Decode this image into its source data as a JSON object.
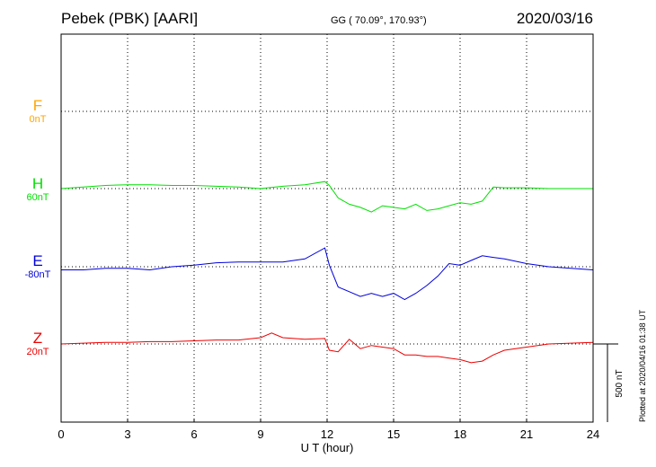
{
  "header": {
    "station": "Pebek (PBK)  [AARI]",
    "coords": "GG ( 70.09°, 170.93°)",
    "date": "2020/03/16"
  },
  "footer_note": "Plotted at 2020/04/16 01:38 UT",
  "chart_data": {
    "type": "line",
    "title": "Pebek (PBK)  [AARI]",
    "xlabel": "U T (hour)",
    "xlim": [
      0,
      24
    ],
    "xticks": [
      "0",
      "3",
      "6",
      "9",
      "12",
      "15",
      "18",
      "21",
      "24"
    ],
    "grid": true,
    "scale_bar": {
      "label": "500 nT",
      "value_nT": 500
    },
    "series": [
      {
        "name": "F",
        "baseline": "0nT",
        "color": "#ffa500",
        "x": [],
        "y": []
      },
      {
        "name": "H",
        "baseline": "60nT",
        "color": "#00e000",
        "x": [
          0,
          1,
          2,
          3,
          4,
          5,
          6,
          7,
          8,
          9,
          10,
          11,
          11.9,
          12.1,
          12.5,
          13,
          13.5,
          14,
          14.5,
          15,
          15.5,
          16,
          16.5,
          17,
          17.5,
          18,
          18.5,
          19,
          19.5,
          20,
          21,
          22,
          23,
          24
        ],
        "y": [
          0,
          10,
          20,
          25,
          25,
          20,
          20,
          15,
          10,
          0,
          15,
          25,
          45,
          20,
          -60,
          -100,
          -120,
          -150,
          -110,
          -120,
          -130,
          -100,
          -140,
          -130,
          -110,
          -90,
          -100,
          -80,
          10,
          5,
          5,
          0,
          0,
          0
        ]
      },
      {
        "name": "E",
        "baseline": "-80nT",
        "color": "#0000dd",
        "x": [
          0,
          1,
          2,
          3,
          4,
          5,
          6,
          7,
          8,
          9,
          10,
          11,
          11.9,
          12.1,
          12.5,
          13,
          13.5,
          14,
          14.5,
          15,
          15.5,
          16,
          16.5,
          17,
          17.5,
          18,
          18.5,
          19,
          19.5,
          20,
          21,
          22,
          23,
          24
        ],
        "y": [
          -20,
          -20,
          -10,
          -10,
          -20,
          0,
          10,
          25,
          30,
          30,
          30,
          50,
          120,
          10,
          -130,
          -160,
          -190,
          -170,
          -190,
          -170,
          -210,
          -170,
          -120,
          -60,
          20,
          10,
          40,
          70,
          60,
          50,
          20,
          0,
          -10,
          -20
        ]
      },
      {
        "name": "Z",
        "baseline": "20nT",
        "color": "#ee0000",
        "x": [
          0,
          1,
          2,
          3,
          4,
          5,
          6,
          7,
          8,
          9,
          9.5,
          10,
          11,
          11.9,
          12.1,
          12.5,
          13,
          13.5,
          14,
          14.5,
          15,
          15.5,
          16,
          16.5,
          17,
          17.5,
          18,
          18.5,
          19,
          19.5,
          20,
          21,
          22,
          23,
          24
        ],
        "y": [
          0,
          5,
          10,
          10,
          15,
          15,
          20,
          25,
          25,
          40,
          70,
          40,
          30,
          35,
          -40,
          -50,
          30,
          -30,
          -10,
          -20,
          -30,
          -70,
          -70,
          -80,
          -80,
          -90,
          -100,
          -120,
          -110,
          -70,
          -40,
          -20,
          0,
          5,
          10
        ]
      }
    ]
  }
}
